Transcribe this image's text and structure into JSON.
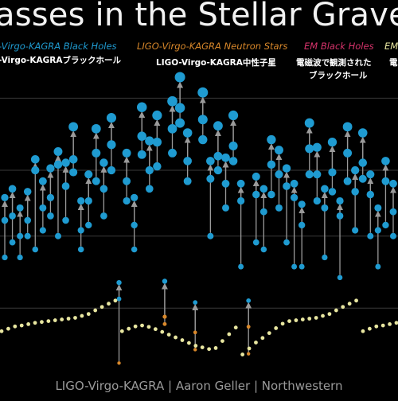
{
  "title": "asses in the Stellar Grave",
  "legend": [
    {
      "label": "-Virgo-KAGRA Black Holes",
      "color": "#1f9bd1"
    },
    {
      "label": "LIGO-Virgo-KAGRA Neutron Stars",
      "color": "#d9882a"
    },
    {
      "label": "EM Black Holes",
      "color": "#d6336b"
    },
    {
      "label": "EM",
      "color": "#e8e6a0"
    }
  ],
  "annotations": {
    "bh_jp": "-Virgo-KAGRAブラックホール",
    "ns_jp": "LIGO-Virgo-KAGRA中性子星",
    "em_jp_1": "電磁波で観測された",
    "em_jp_2": "ブラックホール",
    "em_ns_jp": "電"
  },
  "credit": "LIGO-Virgo-KAGRA | Aaron Geller | Northwestern",
  "colors": {
    "background": "#000000",
    "bh": "#1f9bd1",
    "ns": "#d9882a",
    "em_ns": "#e8e6a0",
    "arrow": "#9a9a9a",
    "grid": "#3a3a3a"
  },
  "chart_data": {
    "type": "scatter",
    "description_note": "",
    "y_axis_scale": "log",
    "grid": true,
    "mergers": [
      {
        "a": 13,
        "b": 7,
        "f": 19
      },
      {
        "a": 14,
        "b": 9,
        "f": 22
      },
      {
        "a": 10,
        "b": 7,
        "f": 16
      },
      {
        "a": 13,
        "b": 10,
        "f": 21
      },
      {
        "a": 30,
        "b": 8,
        "f": 36
      },
      {
        "a": 16,
        "b": 11,
        "f": 25
      },
      {
        "a": 19,
        "b": 14,
        "f": 31
      },
      {
        "a": 33,
        "b": 10,
        "f": 41
      },
      {
        "a": 23,
        "b": 13,
        "f": 34
      },
      {
        "a": 36,
        "b": 29,
        "f": 62
      },
      {
        "a": 11,
        "b": 8,
        "f": 18
      },
      {
        "a": 18,
        "b": 12,
        "f": 28
      },
      {
        "a": 40,
        "b": 25,
        "f": 60
      },
      {
        "a": 22,
        "b": 14,
        "f": 34
      },
      {
        "a": 46,
        "b": 30,
        "f": 72
      },
      {
        "a": 3.5,
        "b": 1.2,
        "f": 4.6
      },
      {
        "a": 25,
        "b": 18,
        "f": 40
      },
      {
        "a": 12,
        "b": 8,
        "f": 19
      },
      {
        "a": 53,
        "b": 39,
        "f": 86
      },
      {
        "a": 30,
        "b": 22,
        "f": 49
      },
      {
        "a": 48,
        "b": 32,
        "f": 75
      },
      {
        "a": 2.6,
        "b": 2.3,
        "f": 4.7
      },
      {
        "a": 60,
        "b": 40,
        "f": 95
      },
      {
        "a": 85,
        "b": 66,
        "f": 142
      },
      {
        "a": 35,
        "b": 25,
        "f": 56
      },
      {
        "a": 2.0,
        "b": 1.5,
        "f": 3.3
      },
      {
        "a": 70,
        "b": 50,
        "f": 110
      },
      {
        "a": 26,
        "b": 10,
        "f": 35
      },
      {
        "a": 38,
        "b": 30,
        "f": 63
      },
      {
        "a": 24,
        "b": 16,
        "f": 37
      },
      {
        "a": 45,
        "b": 35,
        "f": 75
      },
      {
        "a": 18,
        "b": 6,
        "f": 24
      },
      {
        "a": 2.2,
        "b": 1.4,
        "f": 3.4
      },
      {
        "a": 20,
        "b": 9,
        "f": 27
      },
      {
        "a": 15,
        "b": 8,
        "f": 22
      },
      {
        "a": 33,
        "b": 20,
        "f": 50
      },
      {
        "a": 28,
        "b": 16,
        "f": 42
      },
      {
        "a": 23,
        "b": 9,
        "f": 31
      },
      {
        "a": 19,
        "b": 6,
        "f": 24
      },
      {
        "a": 12,
        "b": 6,
        "f": 17
      },
      {
        "a": 43,
        "b": 28,
        "f": 66
      },
      {
        "a": 28,
        "b": 18,
        "f": 44
      },
      {
        "a": 16,
        "b": 7,
        "f": 22
      },
      {
        "a": 29,
        "b": 21,
        "f": 48
      },
      {
        "a": 14,
        "b": 5,
        "f": 18
      },
      {
        "a": 40,
        "b": 25,
        "f": 62
      },
      {
        "a": 21,
        "b": 11,
        "f": 30
      },
      {
        "a": 34,
        "b": 26,
        "f": 56
      },
      {
        "a": 20,
        "b": 10,
        "f": 28
      },
      {
        "a": 11,
        "b": 6,
        "f": 16
      },
      {
        "a": 25,
        "b": 12,
        "f": 35
      },
      {
        "a": 15,
        "b": 10,
        "f": 24
      }
    ],
    "em_neutron_stars": [
      1.2,
      1.25,
      1.3,
      1.32,
      1.35,
      1.38,
      1.4,
      1.42,
      1.44,
      1.46,
      1.48,
      1.5,
      1.55,
      1.6,
      1.7,
      1.8,
      1.9,
      2.0
    ]
  }
}
